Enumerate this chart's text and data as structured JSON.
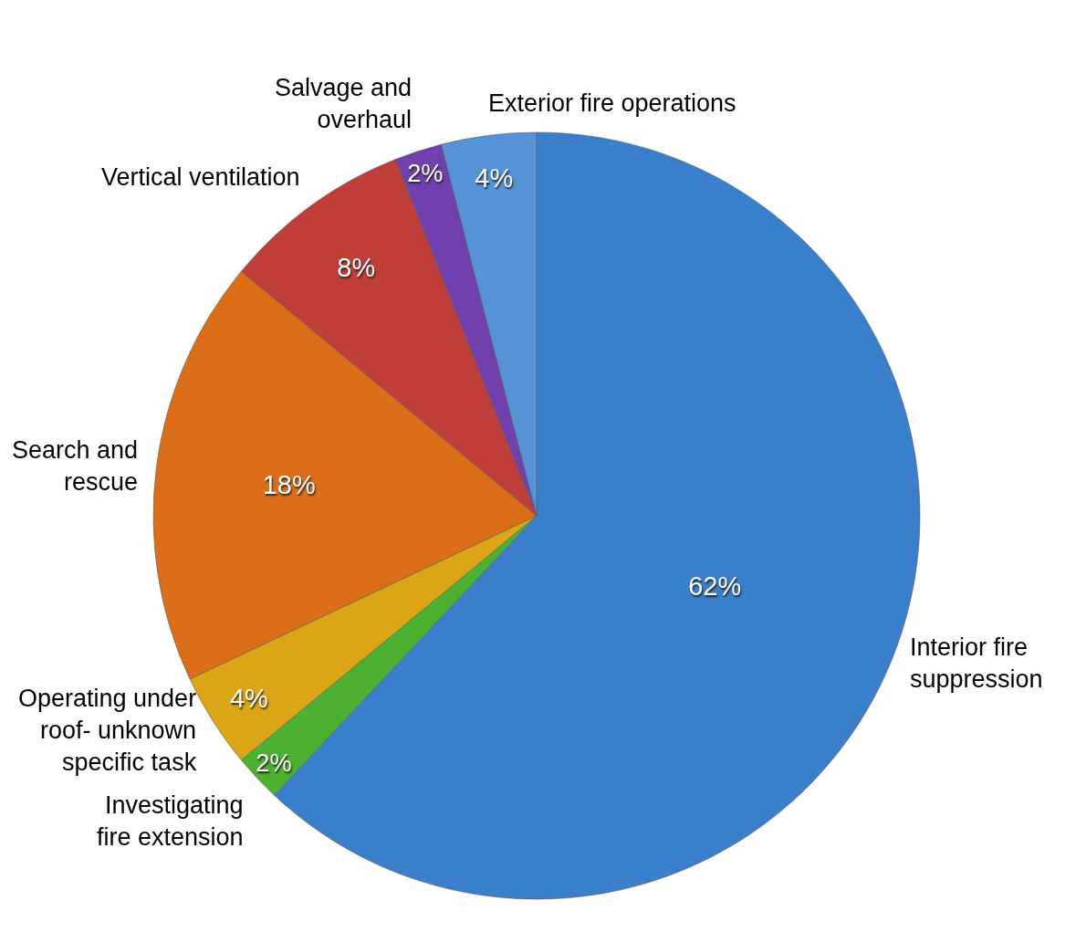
{
  "chart_data": {
    "type": "pie",
    "categories": [
      "Interior fire\nsuppression",
      "Investigating\nfire extension",
      "Operating under\nroof- unknown\nspecific task",
      "Search and\nrescue",
      "Vertical ventilation",
      "Salvage and\noverhaul",
      "Exterior fire operations"
    ],
    "values": [
      62,
      2,
      4,
      18,
      8,
      2,
      4
    ],
    "value_labels": [
      "62%",
      "2%",
      "4%",
      "18%",
      "8%",
      "2%",
      "4%"
    ],
    "colors": [
      "#3a7fcc",
      "#4cb030",
      "#dba515",
      "#dc6e1a",
      "#c03e3a",
      "#7040ae",
      "#5592d6"
    ]
  }
}
